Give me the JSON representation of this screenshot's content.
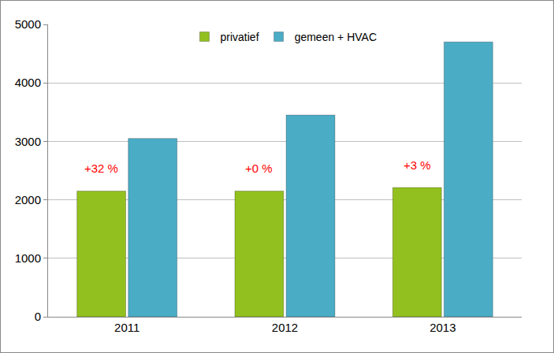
{
  "chart_data": {
    "type": "bar",
    "categories": [
      "2011",
      "2012",
      "2013"
    ],
    "series": [
      {
        "name": "privatief",
        "color": "#92c01e",
        "values": [
          2150,
          2150,
          2210
        ]
      },
      {
        "name": "gemeen + HVAC",
        "color": "#4bacc6",
        "values": [
          3050,
          3450,
          4700
        ]
      }
    ],
    "annotations": [
      {
        "category": "2011",
        "series": "privatief",
        "text": "+32 %",
        "color": "#ff0000"
      },
      {
        "category": "2012",
        "series": "privatief",
        "text": "+0 %",
        "color": "#ff0000"
      },
      {
        "category": "2013",
        "series": "privatief",
        "text": "+3 %",
        "color": "#ff0000"
      }
    ],
    "ylim": [
      0,
      5000
    ],
    "yticks": [
      0,
      1000,
      2000,
      3000,
      4000,
      5000
    ],
    "grid": true,
    "legend": "top"
  }
}
